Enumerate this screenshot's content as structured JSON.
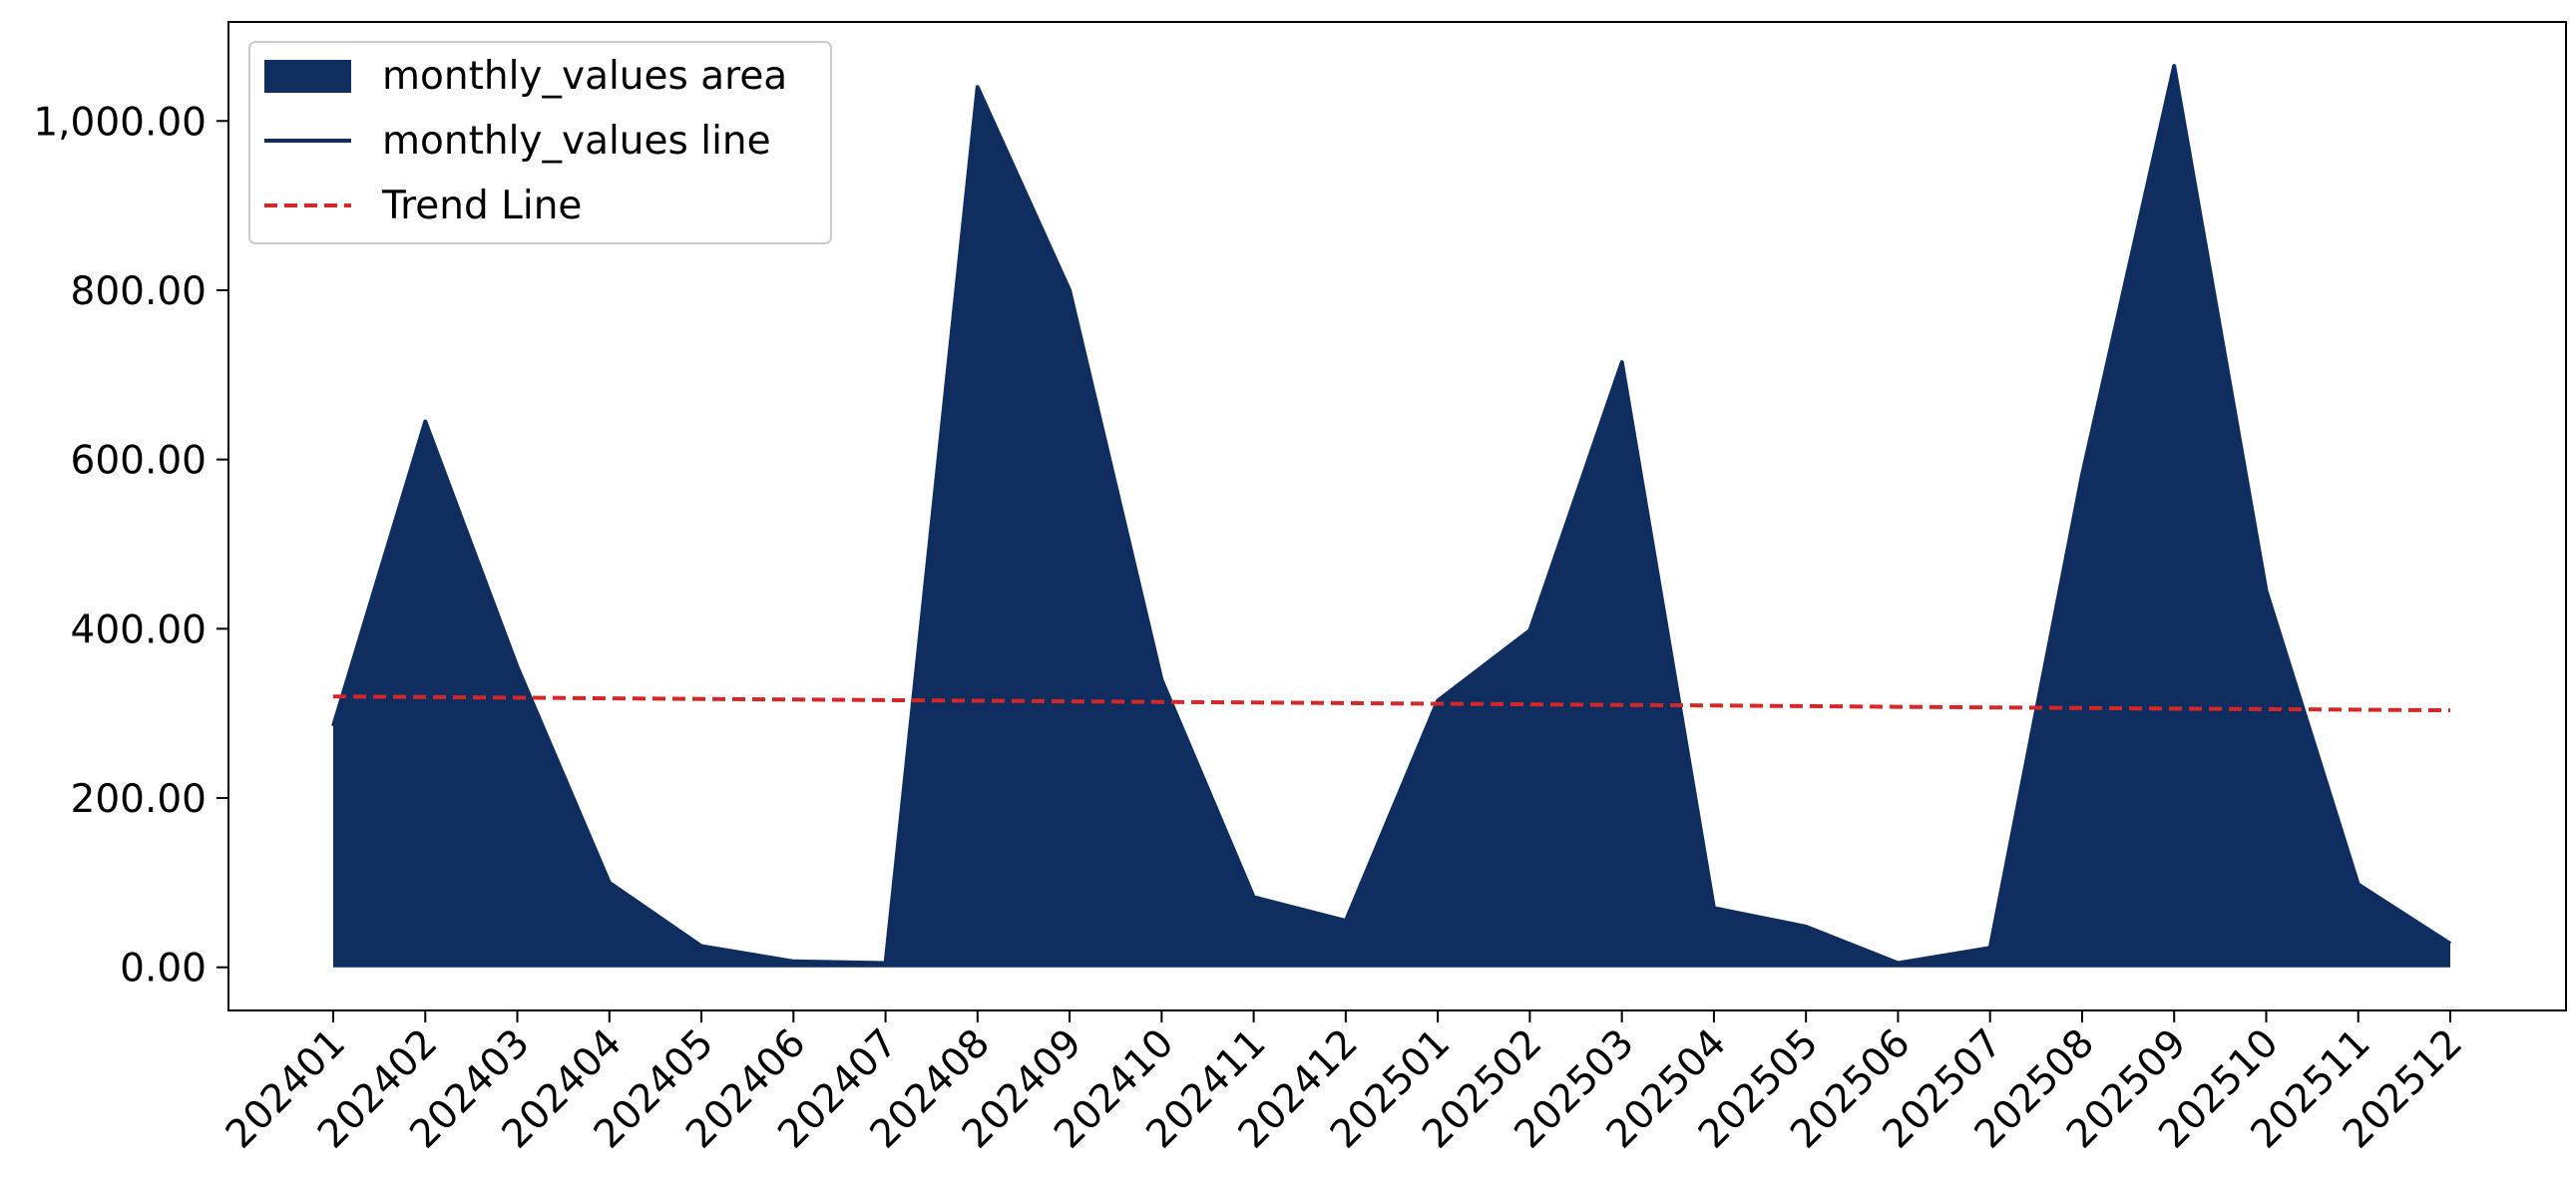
{
  "chart_data": {
    "type": "area",
    "title": "",
    "xlabel": "",
    "ylabel": "",
    "categories": [
      "202401",
      "202402",
      "202403",
      "202404",
      "202405",
      "202406",
      "202407",
      "202408",
      "202409",
      "202410",
      "202411",
      "202412",
      "202501",
      "202502",
      "202503",
      "202504",
      "202505",
      "202506",
      "202507",
      "202508",
      "202509",
      "202510",
      "202511",
      "202512"
    ],
    "series": [
      {
        "name": "monthly_values area",
        "kind": "area",
        "color": "#0f2d5e",
        "values": [
          285,
          645,
          355,
          100,
          25,
          7,
          5,
          1040,
          800,
          340,
          83,
          55,
          315,
          398,
          715,
          70,
          48,
          5,
          23,
          582,
          1065,
          445,
          98,
          28
        ]
      },
      {
        "name": "monthly_values line",
        "kind": "line",
        "color": "#0f2d5e",
        "values": [
          285,
          645,
          355,
          100,
          25,
          7,
          5,
          1040,
          800,
          340,
          83,
          55,
          315,
          398,
          715,
          70,
          48,
          5,
          23,
          582,
          1065,
          445,
          98,
          28
        ]
      },
      {
        "name": "Trend Line",
        "kind": "line",
        "style": "dashed",
        "color": "#d62728",
        "values": [
          320,
          319.3,
          318.6,
          317.8,
          317.1,
          316.4,
          315.7,
          315,
          314.3,
          313.6,
          312.8,
          312.1,
          311.4,
          310.7,
          310,
          309.3,
          308.6,
          307.8,
          307.1,
          306.4,
          305.7,
          305,
          304.3,
          303.6
        ]
      }
    ],
    "yticks": [
      "0.00",
      "200.00",
      "400.00",
      "600.00",
      "800.00",
      "1,000.00"
    ],
    "ytick_values": [
      0,
      200,
      400,
      600,
      800,
      1000
    ],
    "ylim": [
      -51,
      1117
    ],
    "grid": false,
    "legend_position": "top-left"
  }
}
